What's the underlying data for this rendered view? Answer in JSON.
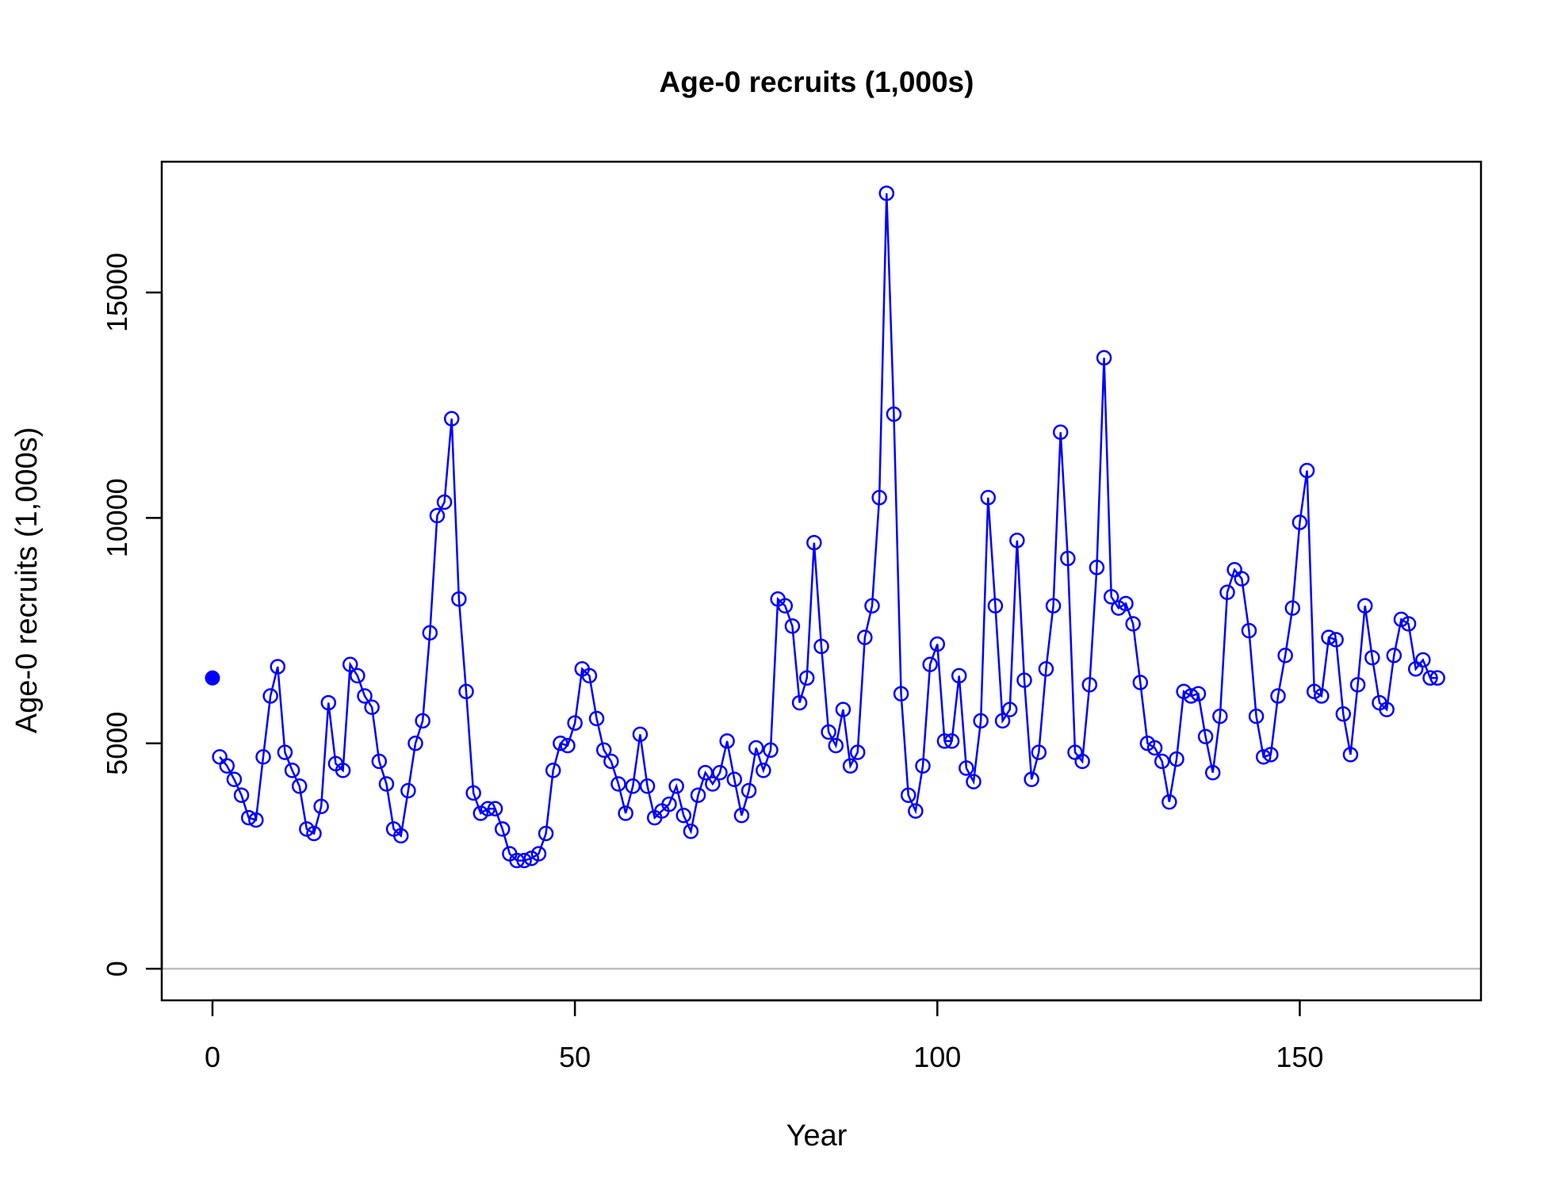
{
  "chart_data": {
    "type": "line",
    "title": "Age-0 recruits (1,000s)",
    "xlabel": "Year",
    "ylabel": "Age-0 recruits (1,000s)",
    "xlim": [
      -7,
      175
    ],
    "ylim": [
      -700,
      17900
    ],
    "xticks": [
      "0",
      "50",
      "100",
      "150"
    ],
    "yticks": [
      "0",
      "5000",
      "10000",
      "15000"
    ],
    "reference_line": {
      "y": 0,
      "color": "#bebebe"
    },
    "colors": {
      "series": "#0000ff",
      "axes": "#000000"
    },
    "grid": false,
    "initial_point": {
      "x": 0,
      "y": 6450
    },
    "series": [
      {
        "x_start": 1,
        "values": [
          4700,
          4500,
          4200,
          3850,
          3350,
          3300,
          4700,
          6050,
          6700,
          4800,
          4400,
          4050,
          3100,
          3000,
          3600,
          5900,
          4550,
          4400,
          6750,
          6500,
          6050,
          5800,
          4600,
          4100,
          3100,
          2950,
          3950,
          5000,
          5500,
          7450,
          10050,
          10350,
          12200,
          8200,
          6150,
          3900,
          3450,
          3550,
          3550,
          3100,
          2550,
          2400,
          2400,
          2450,
          2550,
          3000,
          4400,
          5000,
          4950,
          5450,
          6650,
          6500,
          5550,
          4850,
          4600,
          4100,
          3450,
          4050,
          5200,
          4050,
          3350,
          3500,
          3650,
          4050,
          3400,
          3050,
          3850,
          4350,
          4100,
          4350,
          5050,
          4200,
          3400,
          3950,
          4900,
          4400,
          4850,
          8200,
          8050,
          7600,
          5900,
          6450,
          9450,
          7150,
          5250,
          4950,
          5750,
          4500,
          4800,
          7350,
          8050,
          10450,
          17200,
          12300,
          6100,
          3850,
          3500,
          4500,
          6750,
          7200,
          5050,
          5050,
          6500,
          4450,
          4150,
          5500,
          10450,
          8050,
          5500,
          5750,
          9500,
          6400,
          4200,
          4800,
          6650,
          8050,
          11900,
          9100,
          4800,
          4600,
          6300,
          8900,
          13550,
          8250,
          8000,
          8100,
          7650,
          6350,
          5000,
          4900,
          4600,
          3700,
          4650,
          6150,
          6050,
          6100,
          5150,
          4350,
          5600,
          8350,
          8850,
          8650,
          7500,
          5600,
          4700,
          4750,
          6050,
          6950,
          8000,
          9900,
          11050,
          6150,
          6050,
          7350,
          7300,
          5650,
          4750,
          6300,
          8050,
          6900,
          5900,
          5750,
          6950,
          7750,
          7650,
          6650,
          6850,
          6450,
          6450
        ]
      }
    ]
  }
}
